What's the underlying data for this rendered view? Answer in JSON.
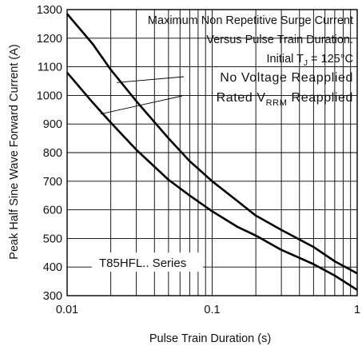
{
  "chart_data": {
    "type": "line",
    "xscale": "log",
    "xlim": [
      0.01,
      1
    ],
    "ylim": [
      300,
      1300
    ],
    "xlabel": "Pulse Train Duration (s)",
    "ylabel": "Peak Half Sine Wave Forward Current (A)",
    "xticks": [
      "0.01",
      "0.1",
      "1"
    ],
    "yticks": [
      "1300",
      "1200",
      "1100",
      "1000",
      "900",
      "800",
      "700",
      "600",
      "500",
      "400",
      "300"
    ],
    "grid": true,
    "annotations": {
      "line1": "Maximum Non Repetitive Surge Current",
      "line2": "Versus Pulse Train Duration.",
      "line3_main": "Initial T",
      "line3_sub": "J",
      "line3_rest": " = 125°C",
      "line4": "No Voltage Reapplied",
      "line5_main": "Rated V",
      "line5_sub": "RRM",
      "line5_rest": " Reapplied",
      "series_label": "T85HFL.. Series"
    },
    "series": [
      {
        "name": "No Voltage Reapplied",
        "x": [
          0.01,
          0.015,
          0.02,
          0.03,
          0.05,
          0.07,
          0.1,
          0.15,
          0.2,
          0.3,
          0.5,
          0.7,
          1.0
        ],
        "y": [
          1285,
          1180,
          1090,
          980,
          850,
          770,
          700,
          630,
          580,
          530,
          470,
          420,
          378
        ]
      },
      {
        "name": "Rated VRRM Reapplied",
        "x": [
          0.01,
          0.015,
          0.02,
          0.03,
          0.05,
          0.07,
          0.1,
          0.15,
          0.2,
          0.3,
          0.5,
          0.7,
          1.0
        ],
        "y": [
          1080,
          975,
          905,
          810,
          705,
          650,
          595,
          540,
          510,
          460,
          410,
          370,
          320
        ]
      }
    ]
  }
}
